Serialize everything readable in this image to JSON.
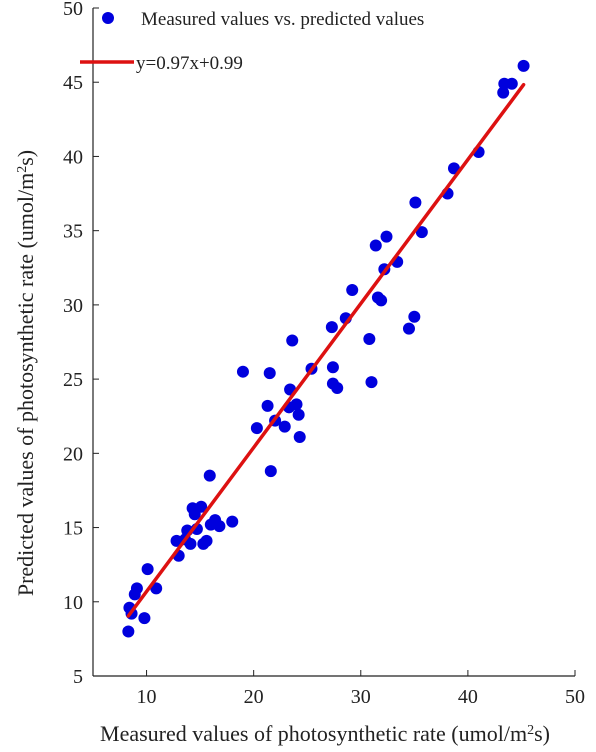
{
  "chart_data": {
    "type": "scatter",
    "title": "",
    "xlabel": "Measured values of  photosynthetic rate (umol/m",
    "xlabel_sup": "2",
    "xlabel_tail": "s)",
    "ylabel": "Predicted values of  photosynthetic rate (umol/m",
    "ylabel_sup": "2",
    "ylabel_tail": "s)",
    "xlim": [
      5,
      50
    ],
    "ylim": [
      5,
      50
    ],
    "xticks": [
      "10",
      "20",
      "30",
      "40",
      "50"
    ],
    "yticks": [
      "5",
      "10",
      "15",
      "20",
      "25",
      "30",
      "35",
      "40",
      "45",
      "50"
    ],
    "grid": false,
    "legend_position": "top-left",
    "series": [
      {
        "name": "Measured values vs. predicted values",
        "kind": "scatter",
        "color": "#0000dd",
        "points": [
          [
            8.3,
            8.0
          ],
          [
            8.4,
            9.6
          ],
          [
            8.6,
            9.2
          ],
          [
            8.9,
            10.5
          ],
          [
            9.1,
            10.9
          ],
          [
            9.8,
            8.9
          ],
          [
            10.1,
            12.2
          ],
          [
            10.9,
            10.9
          ],
          [
            12.8,
            14.1
          ],
          [
            13.0,
            13.1
          ],
          [
            13.6,
            14.2
          ],
          [
            13.8,
            14.8
          ],
          [
            14.1,
            13.9
          ],
          [
            14.3,
            16.3
          ],
          [
            14.5,
            15.9
          ],
          [
            14.7,
            14.9
          ],
          [
            15.1,
            16.4
          ],
          [
            15.3,
            13.9
          ],
          [
            15.6,
            14.1
          ],
          [
            15.9,
            18.5
          ],
          [
            16.0,
            15.2
          ],
          [
            16.4,
            15.5
          ],
          [
            16.8,
            15.1
          ],
          [
            18.0,
            15.4
          ],
          [
            19.0,
            25.5
          ],
          [
            20.3,
            21.7
          ],
          [
            21.3,
            23.2
          ],
          [
            21.5,
            25.4
          ],
          [
            21.6,
            18.8
          ],
          [
            22.0,
            22.2
          ],
          [
            22.9,
            21.8
          ],
          [
            23.3,
            23.1
          ],
          [
            23.4,
            24.3
          ],
          [
            23.6,
            27.6
          ],
          [
            24.0,
            23.3
          ],
          [
            24.2,
            22.6
          ],
          [
            24.3,
            21.1
          ],
          [
            25.4,
            25.7
          ],
          [
            27.3,
            28.5
          ],
          [
            27.4,
            25.8
          ],
          [
            27.4,
            24.7
          ],
          [
            27.8,
            24.4
          ],
          [
            28.6,
            29.1
          ],
          [
            29.2,
            31.0
          ],
          [
            30.8,
            27.7
          ],
          [
            31.0,
            24.8
          ],
          [
            31.4,
            34.0
          ],
          [
            31.6,
            30.5
          ],
          [
            31.9,
            30.3
          ],
          [
            32.2,
            32.4
          ],
          [
            32.4,
            34.6
          ],
          [
            33.4,
            32.9
          ],
          [
            34.5,
            28.4
          ],
          [
            35.0,
            29.2
          ],
          [
            35.1,
            36.9
          ],
          [
            35.7,
            34.9
          ],
          [
            38.1,
            37.5
          ],
          [
            38.7,
            39.2
          ],
          [
            41.0,
            40.3
          ],
          [
            43.3,
            44.3
          ],
          [
            43.4,
            44.9
          ],
          [
            44.1,
            44.9
          ],
          [
            45.2,
            46.1
          ]
        ]
      },
      {
        "name": "y=0.97x+0.99",
        "kind": "line",
        "color": "#dd1111",
        "x": [
          8.3,
          45.2
        ],
        "slope": 0.97,
        "intercept": 0.99
      }
    ]
  }
}
